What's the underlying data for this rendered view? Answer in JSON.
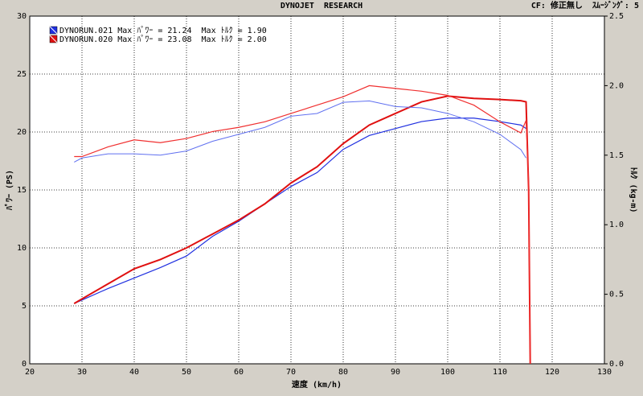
{
  "chart_data": {
    "type": "line",
    "title": "DYNOJET  RESEARCH",
    "subtitle": "CF: 修正無し  ｽﾑｰｼﾞﾝｸﾞ: 5",
    "x_label": "速度 (km/h)",
    "y_label": "ﾊﾟﾜｰ (PS)",
    "y2_label": "ﾄﾙｸ (kg-m)",
    "legend": [
      {
        "label": "DYNORUN.021 Max ﾊﾟﾜｰ = 21.24  Max ﾄﾙｸ = 1.90",
        "color": "#2030e0"
      },
      {
        "label": "DYNORUN.020 Max ﾊﾟﾜｰ = 23.08  Max ﾄﾙｸ = 2.00",
        "color": "#e01010"
      }
    ],
    "x": [
      28.5,
      30,
      35,
      40,
      45,
      50,
      55,
      60,
      65,
      70,
      75,
      80,
      85,
      90,
      95,
      100,
      105,
      110,
      114,
      115,
      115.5,
      115.8
    ],
    "series": [
      {
        "color": "#2030e0",
        "width": 1.2,
        "values": [
          5.2,
          5.5,
          6.5,
          7.4,
          8.3,
          9.3,
          11.0,
          12.3,
          13.8,
          15.3,
          16.5,
          18.5,
          19.7,
          20.3,
          20.9,
          21.2,
          21.2,
          20.9,
          20.6,
          20.3,
          null,
          null
        ]
      },
      {
        "color": "#e01010",
        "width": 2,
        "values": [
          5.2,
          5.6,
          6.9,
          8.2,
          9.0,
          10.0,
          11.2,
          12.4,
          13.8,
          15.6,
          17.0,
          19.0,
          20.6,
          21.6,
          22.6,
          23.1,
          22.9,
          22.8,
          22.7,
          22.6,
          15,
          0
        ]
      },
      {
        "color": "#6070f0",
        "width": 1,
        "axis": "y2",
        "values": [
          1.45,
          1.48,
          1.51,
          1.51,
          1.5,
          1.53,
          1.6,
          1.65,
          1.7,
          1.78,
          1.8,
          1.88,
          1.89,
          1.85,
          1.84,
          1.8,
          1.74,
          1.65,
          1.54,
          1.48,
          null,
          null
        ]
      },
      {
        "color": "#f03030",
        "width": 1.2,
        "axis": "y2",
        "values": [
          1.49,
          1.49,
          1.56,
          1.61,
          1.59,
          1.62,
          1.67,
          1.7,
          1.74,
          1.8,
          1.86,
          1.92,
          2.0,
          1.98,
          1.96,
          1.93,
          1.86,
          1.74,
          1.66,
          1.75,
          1.3,
          0
        ]
      }
    ],
    "xlim": [
      20,
      130
    ],
    "xticks": [
      20,
      30,
      40,
      50,
      60,
      70,
      80,
      90,
      100,
      110,
      120,
      130
    ],
    "ylim": [
      0,
      30
    ],
    "yticks": [
      0,
      5,
      10,
      15,
      20,
      25,
      30
    ],
    "y2lim": [
      0,
      2.5
    ],
    "y2ticks": [
      {
        "value": 0,
        "label": "0.0"
      },
      0.5,
      {
        "value": 1,
        "label": "1.0"
      },
      1.5,
      {
        "value": 2,
        "label": "2.0"
      },
      2.5
    ],
    "grid": true
  }
}
